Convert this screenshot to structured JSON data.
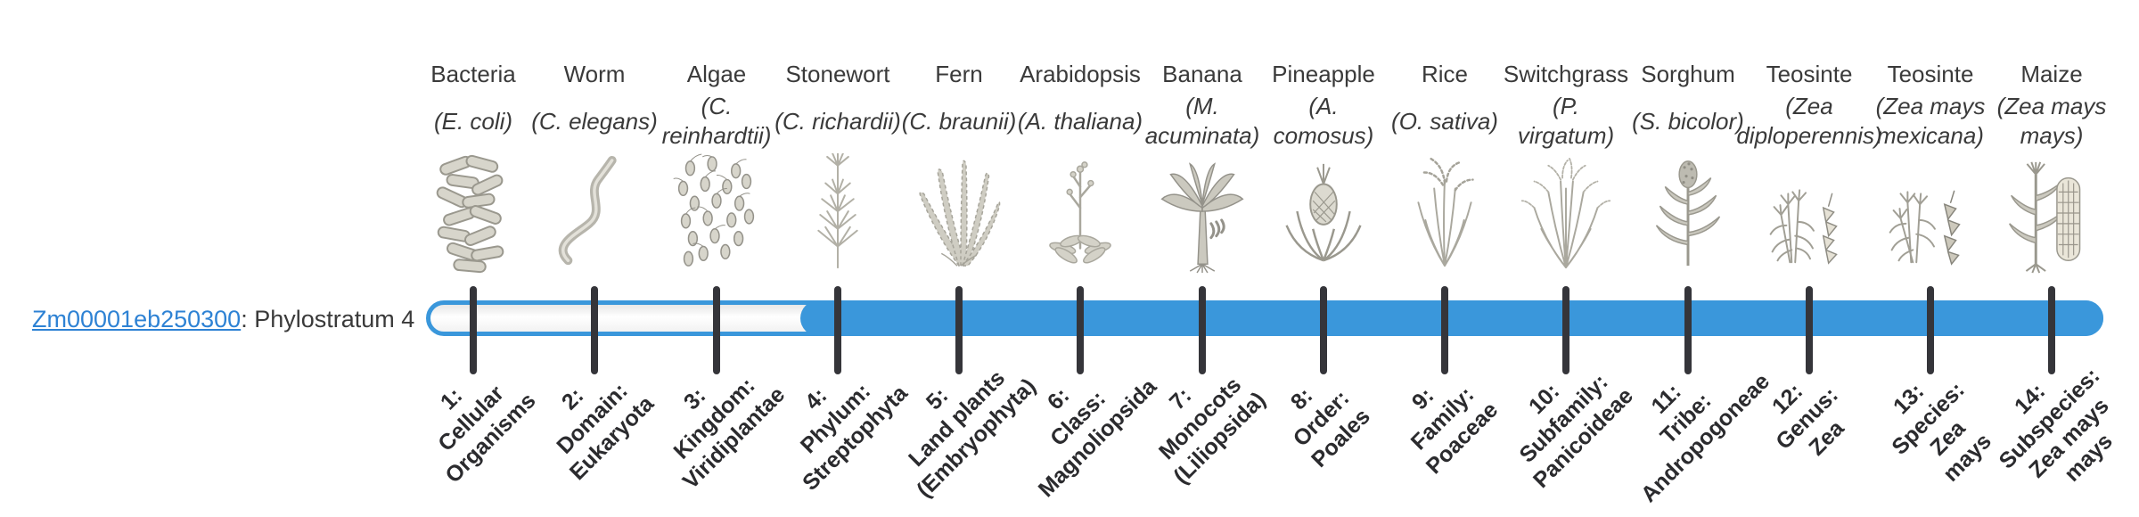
{
  "gene": {
    "id": "Zm00001eb250300",
    "suffix": ": Phylostratum 4",
    "phylostratum": 4
  },
  "colors": {
    "bar_blue": "#3a97db",
    "link_blue": "#2e82d4",
    "tick_dark": "#35353a",
    "track_fill_light": "#f5f5f5"
  },
  "bar": {
    "total_strata": 14,
    "filled_from_stratum": 4
  },
  "strata": [
    {
      "index": 1,
      "common_name": [
        "Bacteria"
      ],
      "scientific_name": [
        "(E. coli)"
      ],
      "icon": "bacteria",
      "rank_label": [
        "1:",
        "Cellular",
        "Organisms"
      ]
    },
    {
      "index": 2,
      "common_name": [
        "Worm"
      ],
      "scientific_name": [
        "(C. elegans)"
      ],
      "icon": "worm",
      "rank_label": [
        "2:",
        "Domain:",
        "Eukaryota"
      ]
    },
    {
      "index": 3,
      "common_name": [
        "Algae"
      ],
      "scientific_name": [
        "(C.",
        "reinhardtii)"
      ],
      "icon": "algae",
      "rank_label": [
        "3:",
        "Kingdom:",
        "Viridiplantae"
      ]
    },
    {
      "index": 4,
      "common_name": [
        "Stonewort"
      ],
      "scientific_name": [
        "(C. richardii)"
      ],
      "icon": "stonewort",
      "rank_label": [
        "4:",
        "Phylum:",
        "Streptophyta"
      ]
    },
    {
      "index": 5,
      "common_name": [
        "Fern"
      ],
      "scientific_name": [
        "(C. braunii)"
      ],
      "icon": "fern",
      "rank_label": [
        "5:",
        "Land plants",
        "(Embryophyta)"
      ]
    },
    {
      "index": 6,
      "common_name": [
        "Arabidopsis"
      ],
      "scientific_name": [
        "(A. thaliana)"
      ],
      "icon": "arabidopsis",
      "rank_label": [
        "6:",
        "Class:",
        "Magnoliopsida"
      ]
    },
    {
      "index": 7,
      "common_name": [
        "Banana"
      ],
      "scientific_name": [
        "(M.",
        "acuminata)"
      ],
      "icon": "banana",
      "rank_label": [
        "7:",
        "Monocots",
        "(Liliopsida)"
      ]
    },
    {
      "index": 8,
      "common_name": [
        "Pineapple"
      ],
      "scientific_name": [
        "(A.",
        "comosus)"
      ],
      "icon": "pineapple",
      "rank_label": [
        "8:",
        "Order:",
        "Poales"
      ]
    },
    {
      "index": 9,
      "common_name": [
        "Rice"
      ],
      "scientific_name": [
        "(O. sativa)"
      ],
      "icon": "rice",
      "rank_label": [
        "9:",
        "Family:",
        "Poaceae"
      ]
    },
    {
      "index": 10,
      "common_name": [
        "Switchgrass"
      ],
      "scientific_name": [
        "(P.",
        "virgatum)"
      ],
      "icon": "switchgrass",
      "rank_label": [
        "10:",
        "Subfamily:",
        "Panicoideae"
      ]
    },
    {
      "index": 11,
      "common_name": [
        "Sorghum"
      ],
      "scientific_name": [
        "(S. bicolor)"
      ],
      "icon": "sorghum",
      "rank_label": [
        "11:",
        "Tribe:",
        "Andropogoneae"
      ]
    },
    {
      "index": 12,
      "common_name": [
        "Teosinte"
      ],
      "scientific_name": [
        "(Zea",
        "diploperennis)"
      ],
      "icon": "teosinte-diploperennis",
      "rank_label": [
        "12:",
        "Genus:",
        "Zea"
      ]
    },
    {
      "index": 13,
      "common_name": [
        "Teosinte"
      ],
      "scientific_name": [
        "(Zea mays",
        "mexicana)"
      ],
      "icon": "teosinte-mexicana",
      "rank_label": [
        "13:",
        "Species:",
        "Zea",
        "mays"
      ]
    },
    {
      "index": 14,
      "common_name": [
        "Maize"
      ],
      "scientific_name": [
        "(Zea mays",
        "mays)"
      ],
      "icon": "maize",
      "rank_label": [
        "14:",
        "Subspecies:",
        "Zea mays",
        "mays"
      ]
    }
  ]
}
